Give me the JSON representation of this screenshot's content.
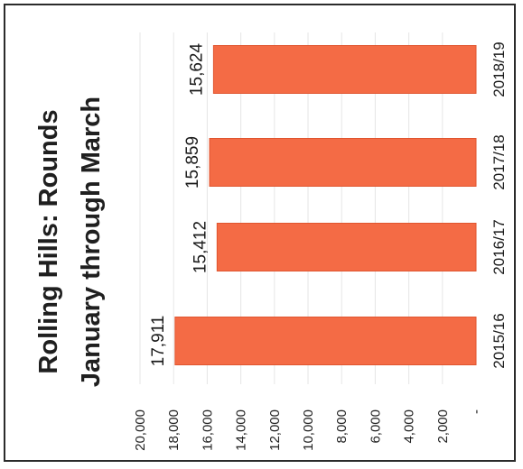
{
  "chart_data": {
    "type": "bar",
    "orientation": "horizontal",
    "title": "Rolling Hills: Rounds",
    "subtitle": "January through March",
    "categories": [
      "2015/16",
      "2016/17",
      "2017/18",
      "2018/19"
    ],
    "values": [
      17911,
      15412,
      15859,
      15624
    ],
    "value_labels": [
      "17,911",
      "15,412",
      "15,859",
      "15,624"
    ],
    "value_axis": {
      "ticks": [
        20000,
        18000,
        16000,
        14000,
        12000,
        10000,
        8000,
        6000,
        4000,
        2000,
        0
      ],
      "tick_labels": [
        "20,000",
        "18,000",
        "16,000",
        "14,000",
        "12,000",
        "10,000",
        "8,000",
        "6,000",
        "4,000",
        "2,000",
        "-"
      ],
      "range": [
        0,
        20000
      ],
      "reversed": true
    },
    "grid": true,
    "legend": "none",
    "bar_color": "#f46b45"
  }
}
